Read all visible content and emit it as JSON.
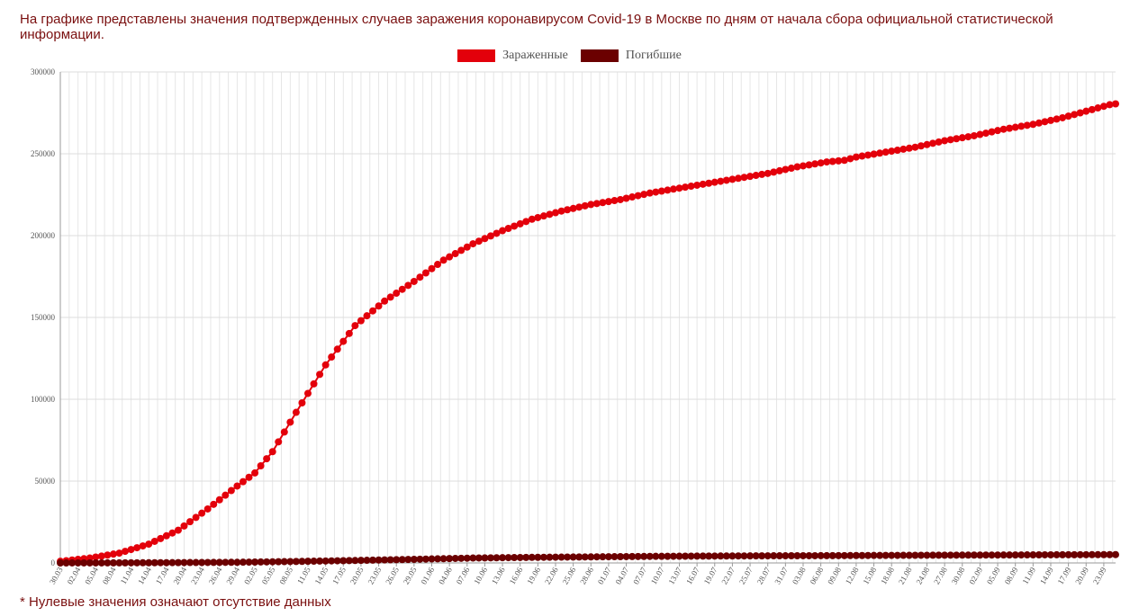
{
  "header": {
    "description": "На графике представлены значения подтвержденных случаев заражения коронавирусом Covid-19 в Москве по дням от начала сбора официальной статистической информации."
  },
  "footnote": "* Нулевые значения означают отсутствие данных",
  "chart_data": {
    "type": "line",
    "grid": true,
    "legend_position": "top-center",
    "ylim": [
      0,
      300000
    ],
    "y_ticks": [
      "0",
      "50000",
      "100000",
      "150000",
      "200000",
      "250000",
      "300000"
    ],
    "x_ticks": [
      "30.03",
      "02.04",
      "05.04",
      "08.04",
      "11.04",
      "14.04",
      "17.04",
      "20.04",
      "23.04",
      "26.04",
      "29.04",
      "02.05",
      "05.05",
      "08.05",
      "11.05",
      "14.05",
      "17.05",
      "20.05",
      "23.05",
      "26.05",
      "29.05",
      "01.06",
      "04.06",
      "07.06",
      "10.06",
      "13.06",
      "16.06",
      "19.06",
      "22.06",
      "25.06",
      "28.06",
      "01.07",
      "04.07",
      "07.07",
      "10.07",
      "13.07",
      "16.07",
      "19.07",
      "22.07",
      "25.07",
      "28.07",
      "31.07",
      "03.08",
      "06.08",
      "09.08",
      "12.08",
      "15.08",
      "18.08",
      "21.08",
      "24.08",
      "27.08",
      "30.08",
      "02.09",
      "05.09",
      "08.09",
      "11.09",
      "14.09",
      "17.09",
      "20.09",
      "23.09"
    ],
    "start_date": "30.03",
    "days": 179,
    "series": [
      {
        "name": "Зараженные",
        "color": "#e3000b",
        "keypoints": [
          [
            0,
            1000
          ],
          [
            5,
            3000
          ],
          [
            10,
            6000
          ],
          [
            15,
            11500
          ],
          [
            20,
            20000
          ],
          [
            25,
            33000
          ],
          [
            30,
            47000
          ],
          [
            33,
            55000
          ],
          [
            36,
            68000
          ],
          [
            40,
            92000
          ],
          [
            45,
            121000
          ],
          [
            50,
            145000
          ],
          [
            55,
            160000
          ],
          [
            60,
            172000
          ],
          [
            65,
            185000
          ],
          [
            70,
            195000
          ],
          [
            75,
            203000
          ],
          [
            80,
            210000
          ],
          [
            85,
            215000
          ],
          [
            90,
            219000
          ],
          [
            95,
            222000
          ],
          [
            100,
            226000
          ],
          [
            105,
            229000
          ],
          [
            110,
            232000
          ],
          [
            115,
            235000
          ],
          [
            120,
            238000
          ],
          [
            125,
            242000
          ],
          [
            130,
            245000
          ],
          [
            133,
            246000
          ],
          [
            135,
            248000
          ],
          [
            140,
            251000
          ],
          [
            145,
            254000
          ],
          [
            150,
            258000
          ],
          [
            155,
            261000
          ],
          [
            160,
            265000
          ],
          [
            165,
            268000
          ],
          [
            170,
            272000
          ],
          [
            175,
            277000
          ],
          [
            178,
            280000
          ],
          [
            179,
            280500
          ]
        ]
      },
      {
        "name": "Погибшие",
        "color": "#6b0000",
        "keypoints": [
          [
            0,
            0
          ],
          [
            10,
            50
          ],
          [
            20,
            200
          ],
          [
            30,
            400
          ],
          [
            40,
            900
          ],
          [
            50,
            1500
          ],
          [
            60,
            2200
          ],
          [
            70,
            3000
          ],
          [
            80,
            3400
          ],
          [
            90,
            3700
          ],
          [
            100,
            4000
          ],
          [
            110,
            4200
          ],
          [
            120,
            4350
          ],
          [
            130,
            4450
          ],
          [
            140,
            4600
          ],
          [
            150,
            4750
          ],
          [
            160,
            4850
          ],
          [
            170,
            5000
          ],
          [
            179,
            5100
          ]
        ]
      }
    ]
  }
}
